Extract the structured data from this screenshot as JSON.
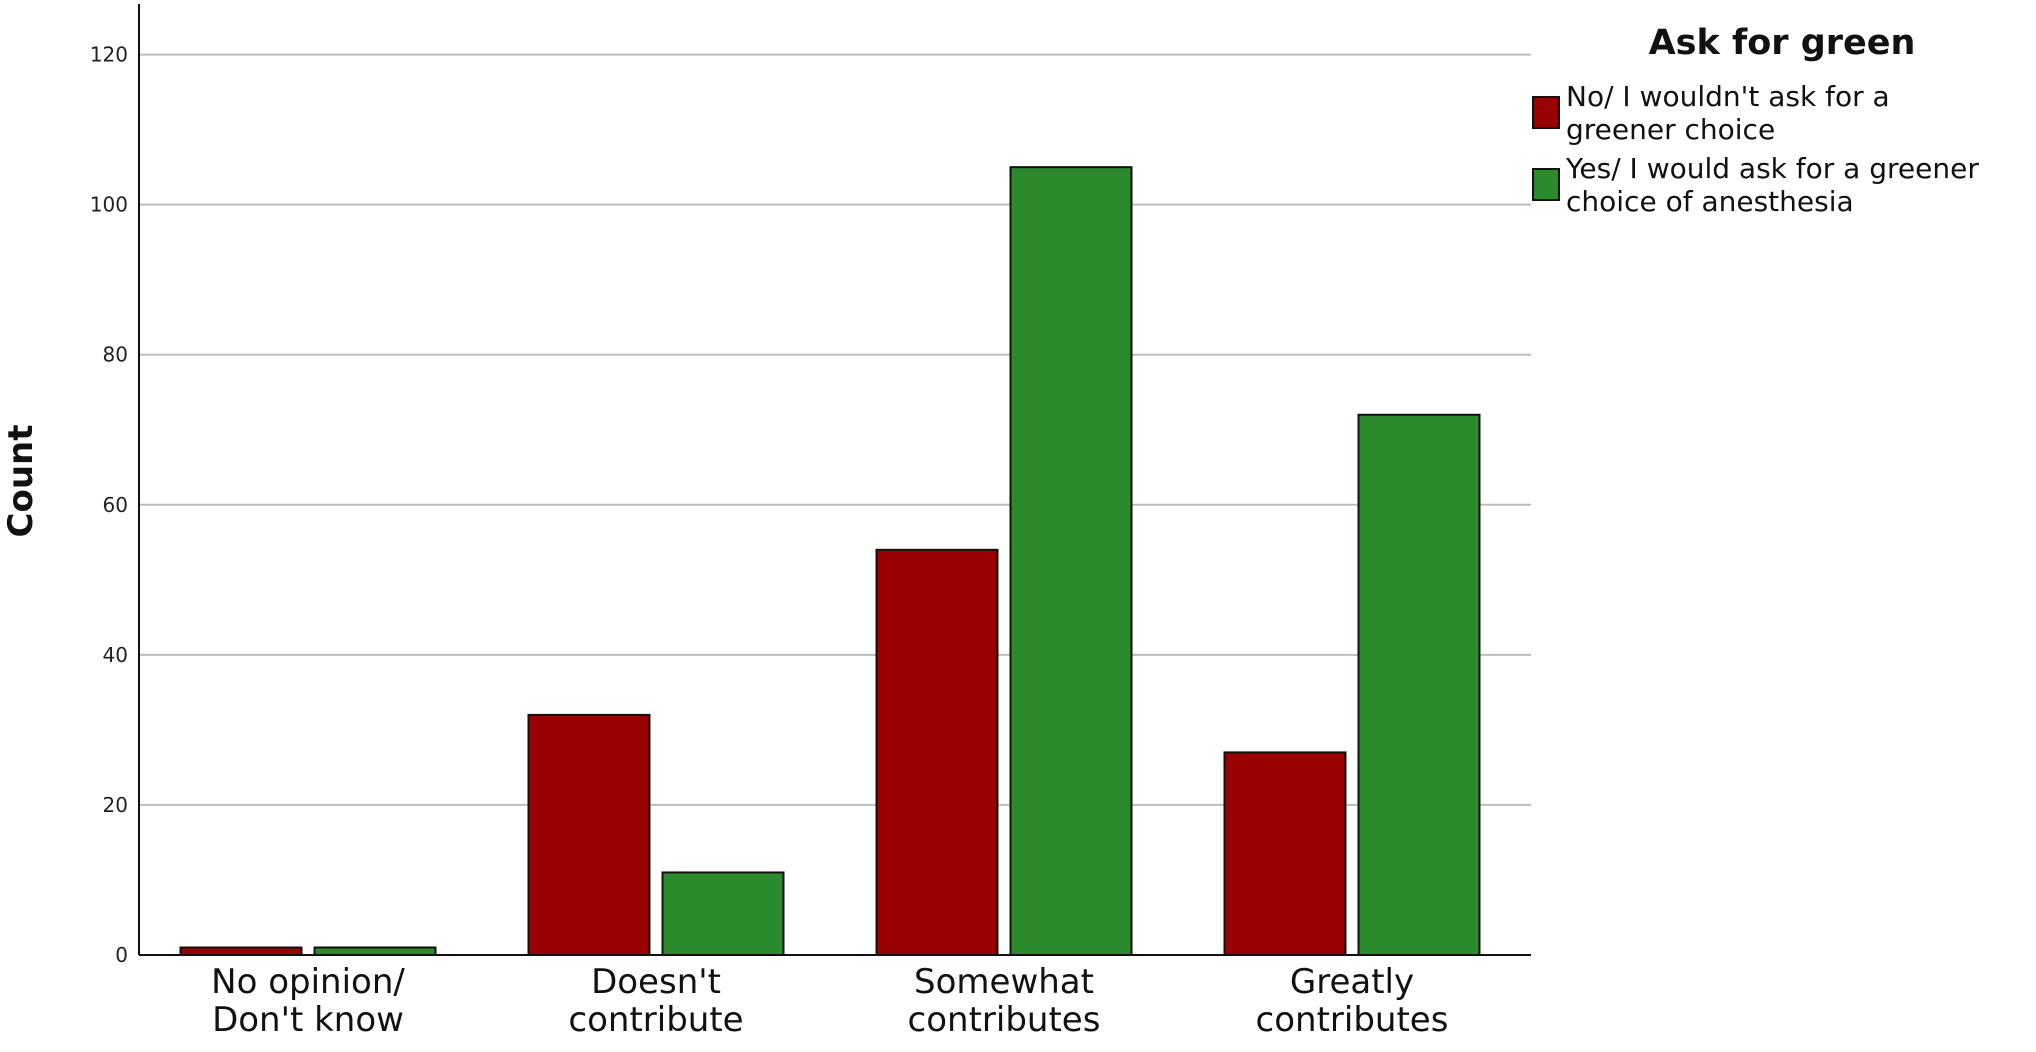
{
  "chart_data": {
    "type": "bar",
    "title": "",
    "xlabel": "",
    "ylabel": "Count",
    "ylim": [
      0,
      126
    ],
    "yticks": [
      0,
      20,
      40,
      60,
      80,
      100,
      120
    ],
    "grid": true,
    "categories": [
      [
        "No opinion/",
        "Don't know"
      ],
      [
        "Doesn't",
        "contribute"
      ],
      [
        "Somewhat",
        "contributes"
      ],
      [
        "Greatly",
        "contributes"
      ]
    ],
    "legend": {
      "title": "Ask for green",
      "placement": "top-right"
    },
    "series": [
      {
        "name": "No/ I wouldn't ask for a greener choice",
        "name_lines": [
          "No/ I wouldn't ask for a",
          "greener choice"
        ],
        "color": "#990000",
        "values": [
          1,
          32,
          54,
          27
        ]
      },
      {
        "name": "Yes/ I would ask for a greener choice of anesthesia",
        "name_lines": [
          "Yes/ I would ask for a greener",
          "choice of anesthesia"
        ],
        "color": "#2b8a2b",
        "values": [
          1,
          11,
          105,
          72
        ]
      }
    ]
  }
}
